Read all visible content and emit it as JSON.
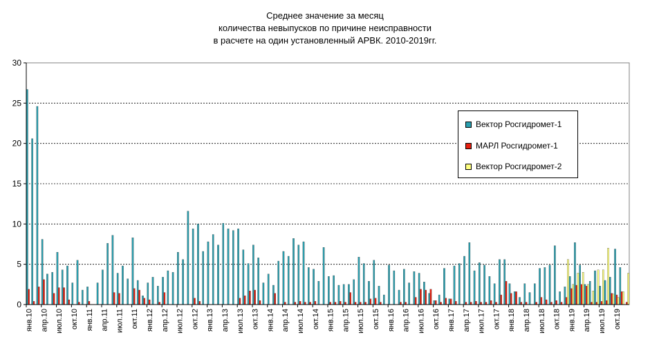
{
  "chart_data": {
    "type": "bar",
    "title": [
      "Среднее значение за месяц",
      "количества невыпусков по причине неисправности",
      "в расчете на один установленный АРВК.  2010-2019гг."
    ],
    "ylim": [
      0,
      30
    ],
    "yticks": [
      "0",
      "5",
      "10",
      "15",
      "20",
      "25",
      "30"
    ],
    "grid": true,
    "legend_position": "right",
    "tick_labels": [
      "янв.10",
      "апр.10",
      "июл.10",
      "окт.10",
      "янв.11",
      "апр.11",
      "июл.11",
      "окт.11",
      "янв.12",
      "апр.12",
      "июл.12",
      "окт.12",
      "янв.13",
      "апр.13",
      "июл.13",
      "окт.13",
      "янв.14",
      "апр.14",
      "июл.14",
      "окт.14",
      "янв.15",
      "апр.15",
      "июл.15",
      "окт.15",
      "янв.16",
      "апр.16",
      "июл.16",
      "окт.16",
      "янв.17",
      "апр.17",
      "июл.17",
      "окт.17",
      "янв.18",
      "апр.18",
      "июл.18",
      "окт.18",
      "янв.19",
      "апр.19",
      "июл.19",
      "окт.19"
    ],
    "series": [
      {
        "name": "Вектор Росгидромет-1",
        "color": "#2aa0b0",
        "values": [
          26.7,
          20.6,
          24.6,
          8.1,
          3.8,
          4.0,
          6.5,
          4.3,
          4.8,
          2.7,
          5.5,
          1.8,
          2.2,
          0,
          2.7,
          4.3,
          7.6,
          8.6,
          3.9,
          4.8,
          3.2,
          8.3,
          3.0,
          1.1,
          2.7,
          3.4,
          2.3,
          3.4,
          4.2,
          4.0,
          6.5,
          5.6,
          11.6,
          9.4,
          10.0,
          6.6,
          7.8,
          8.7,
          7.4,
          10.1,
          9.4,
          9.2,
          9.4,
          6.8,
          5.1,
          7.4,
          5.8,
          2.7,
          3.8,
          2.4,
          5.4,
          6.6,
          6.0,
          8.2,
          7.4,
          7.8,
          4.6,
          4.4,
          2.9,
          7.1,
          3.5,
          3.6,
          2.4,
          2.5,
          2.5,
          3.1,
          5.9,
          5.1,
          2.9,
          5.5,
          2.3,
          1.2,
          4.9,
          4.2,
          1.8,
          4.4,
          2.7,
          4.1,
          3.9,
          2.8,
          1.4,
          0.5,
          1.2,
          4.5,
          0.7,
          4.8,
          5.1,
          6.0,
          7.7,
          4.2,
          5.2,
          4.9,
          3.5,
          2.6,
          5.6,
          5.6,
          2.6,
          1.6,
          0.9,
          2.6,
          1.5,
          2.6,
          4.5,
          4.6,
          4.9,
          7.3,
          1.6,
          2.2,
          3.5,
          7.7,
          4.9,
          2.5,
          2.9,
          4.2,
          2.3,
          3.0,
          3.4,
          6.9,
          4.6,
          0
        ]
      },
      {
        "name": "МАРЛ Росгидромет-1",
        "color": "#e82010",
        "values": [
          1.9,
          0.4,
          2.2,
          3.1,
          0,
          1.4,
          2.1,
          2.1,
          0.6,
          0,
          0.3,
          0,
          0.4,
          0,
          0,
          0,
          0,
          1.5,
          1.4,
          0,
          0,
          2.0,
          1.8,
          0.8,
          0.6,
          0,
          0.3,
          1.5,
          0,
          0,
          0,
          0,
          0,
          0.8,
          0.4,
          0,
          0,
          0,
          0,
          0,
          0,
          0,
          0.8,
          1.1,
          1.7,
          1.8,
          0.5,
          0,
          0,
          1.4,
          0,
          0.3,
          0,
          0.3,
          0.4,
          0.3,
          0.3,
          0.4,
          0,
          0,
          0.3,
          0.3,
          0.4,
          0.3,
          1.5,
          0.3,
          0.3,
          0.3,
          0.7,
          0.8,
          0.3,
          0,
          0,
          0,
          0.3,
          0.3,
          0,
          0.9,
          1.9,
          1.8,
          1.9,
          0.5,
          0.3,
          0.8,
          0.7,
          0.4,
          0,
          0.3,
          0.3,
          0.4,
          0.3,
          0.3,
          0.5,
          0.3,
          1.2,
          2.9,
          1.4,
          1.6,
          0.3,
          0.3,
          0,
          0.3,
          0.9,
          0.6,
          0.3,
          0.5,
          0.3,
          0.9,
          2.0,
          2.4,
          2.5,
          2.3,
          0.3,
          0.3,
          0.4,
          0.5,
          1.4,
          1.2,
          1.6,
          0.3
        ]
      },
      {
        "name": "Вектор Росгидромет-2",
        "color": "#ffff80",
        "values": [
          0,
          0,
          0,
          0,
          0,
          0,
          0,
          0,
          0,
          0,
          0,
          0,
          0,
          0,
          0,
          0,
          0,
          0,
          0,
          0,
          0,
          0,
          0,
          0,
          0,
          0,
          0,
          0,
          0,
          0,
          0,
          0,
          0,
          0,
          0,
          0,
          0,
          0,
          0,
          0,
          0,
          0,
          0,
          0,
          0,
          0,
          0,
          0,
          0,
          0,
          0,
          0,
          0,
          0,
          0,
          0,
          0,
          0,
          0,
          0,
          0,
          0,
          0,
          0,
          0,
          0,
          0,
          0,
          0,
          0,
          0,
          0,
          0,
          0,
          0,
          0,
          0,
          0,
          0,
          0,
          0,
          0,
          0,
          0,
          0,
          0,
          0,
          0,
          0,
          0,
          0,
          0,
          0,
          0,
          0,
          0,
          0,
          0,
          0,
          0,
          0,
          0,
          0,
          0,
          0,
          0,
          0,
          5.6,
          2.5,
          3.9,
          4.0,
          2.5,
          1.7,
          4.3,
          4.3,
          7.0,
          1.3,
          0.9,
          1.6,
          3.9
        ]
      }
    ]
  }
}
